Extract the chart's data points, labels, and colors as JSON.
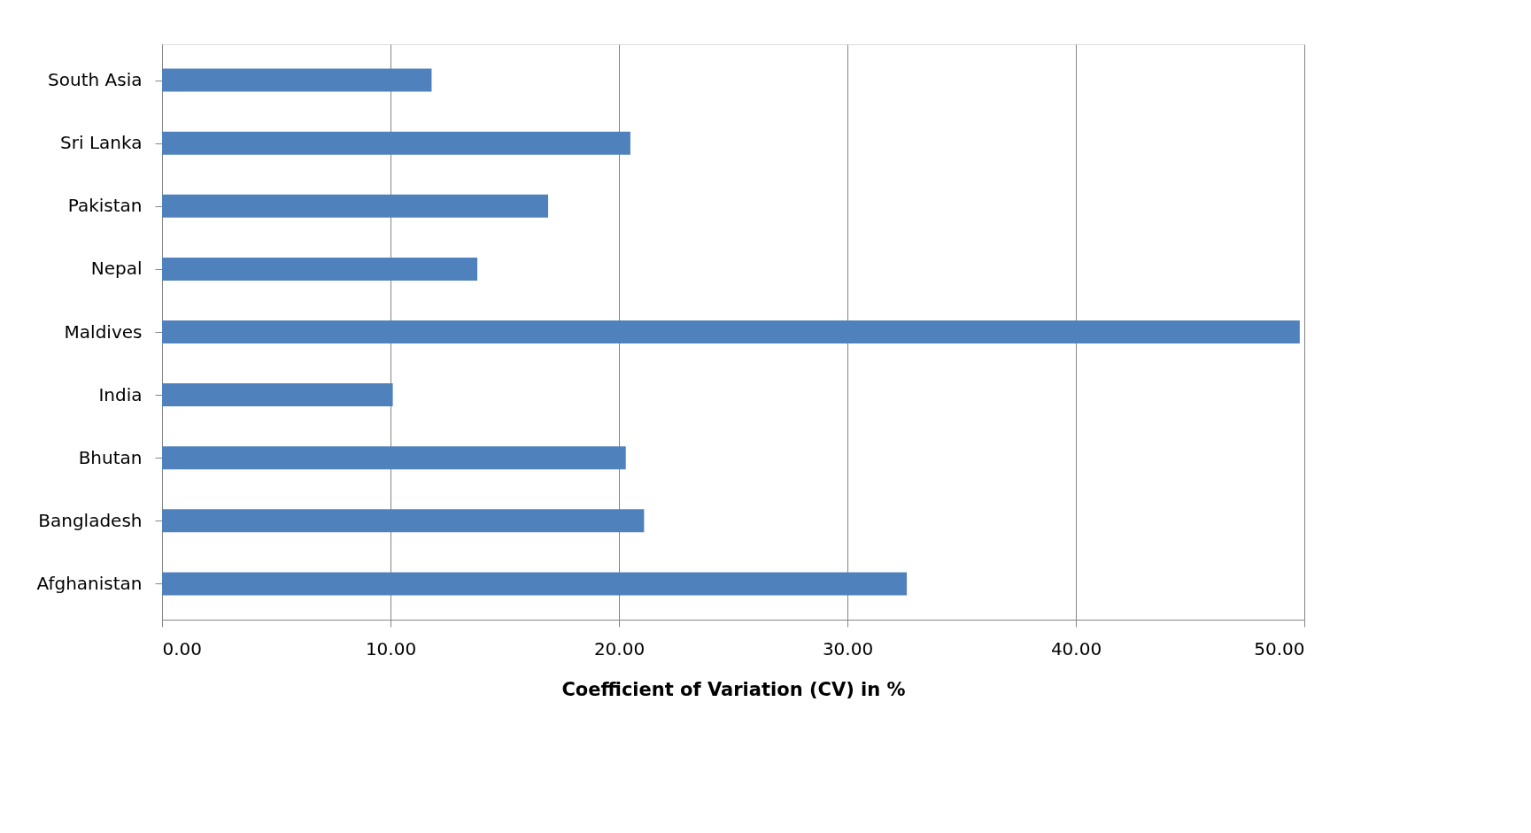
{
  "chart_data": {
    "type": "bar",
    "orientation": "horizontal",
    "xlabel": "Coefficient of Variation  (CV) in %",
    "categories": [
      "South Asia",
      "Sri Lanka",
      "Pakistan",
      "Nepal",
      "Maldives",
      "India",
      "Bhutan",
      "Bangladesh",
      "Afghanistan"
    ],
    "values": [
      11.8,
      20.5,
      16.9,
      13.8,
      49.8,
      10.1,
      20.3,
      21.1,
      32.6
    ],
    "color": "#4f81bd",
    "xlim": [
      0,
      50
    ],
    "xticks": [
      {
        "value": 0,
        "label": "0.00"
      },
      {
        "value": 10,
        "label": "10.00"
      },
      {
        "value": 20,
        "label": "20.00"
      },
      {
        "value": 30,
        "label": "30.00"
      },
      {
        "value": 40,
        "label": "40.00"
      },
      {
        "value": 50,
        "label": "50.00"
      }
    ],
    "grid": "x"
  }
}
